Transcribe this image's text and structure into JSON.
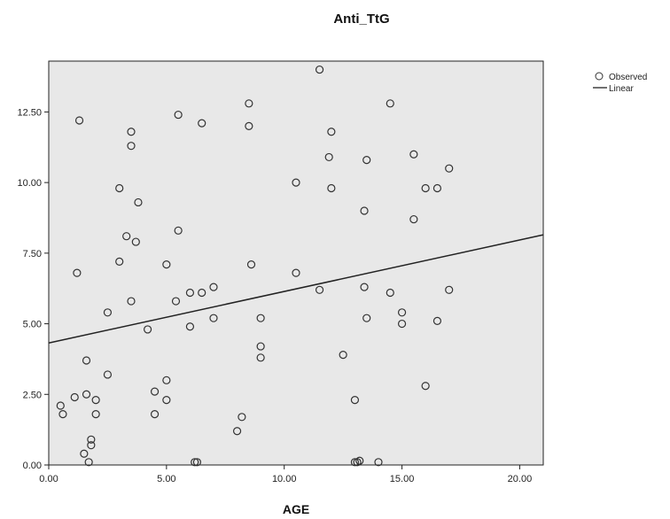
{
  "chart_data": {
    "type": "scatter",
    "title": "Anti_TtG",
    "xlabel": "AGE",
    "ylabel": "",
    "xlim": [
      0,
      21
    ],
    "ylim": [
      0,
      14.3
    ],
    "xticks": [
      0,
      5,
      10,
      15,
      20
    ],
    "xtick_labels": [
      "0.00",
      "5.00",
      "10.00",
      "15.00",
      "20.00"
    ],
    "yticks": [
      0,
      2.5,
      5,
      7.5,
      10,
      12.5
    ],
    "ytick_labels": [
      "0.00",
      "2.50",
      "5.00",
      "7.50",
      "10.00",
      "12.50"
    ],
    "grid": false,
    "legend_position": "top-right",
    "plot_background": "#e8e8e8",
    "marker_color": "#333333",
    "line_color": "#222222",
    "series": [
      {
        "name": "Observed",
        "marker": "open-circle",
        "points": [
          [
            0.5,
            2.1
          ],
          [
            0.6,
            1.8
          ],
          [
            1.1,
            2.4
          ],
          [
            1.2,
            6.8
          ],
          [
            1.3,
            12.2
          ],
          [
            1.5,
            0.4
          ],
          [
            1.6,
            2.5
          ],
          [
            1.6,
            3.7
          ],
          [
            1.7,
            0.1
          ],
          [
            1.8,
            0.7
          ],
          [
            1.8,
            0.9
          ],
          [
            2.0,
            1.8
          ],
          [
            2.0,
            2.3
          ],
          [
            2.5,
            3.2
          ],
          [
            2.5,
            5.4
          ],
          [
            3.0,
            7.2
          ],
          [
            3.0,
            9.8
          ],
          [
            3.3,
            8.1
          ],
          [
            3.5,
            11.8
          ],
          [
            3.5,
            11.3
          ],
          [
            3.5,
            5.8
          ],
          [
            3.7,
            7.9
          ],
          [
            3.8,
            9.3
          ],
          [
            4.2,
            4.8
          ],
          [
            4.5,
            2.6
          ],
          [
            4.5,
            1.8
          ],
          [
            5.0,
            3.0
          ],
          [
            5.0,
            2.3
          ],
          [
            5.0,
            7.1
          ],
          [
            5.4,
            5.8
          ],
          [
            5.5,
            8.3
          ],
          [
            5.5,
            12.4
          ],
          [
            6.0,
            6.1
          ],
          [
            6.0,
            4.9
          ],
          [
            6.2,
            0.1
          ],
          [
            6.3,
            0.1
          ],
          [
            6.5,
            6.1
          ],
          [
            6.5,
            12.1
          ],
          [
            7.0,
            6.3
          ],
          [
            7.0,
            5.2
          ],
          [
            8.0,
            1.2
          ],
          [
            8.2,
            1.7
          ],
          [
            8.5,
            12.8
          ],
          [
            8.5,
            12.0
          ],
          [
            8.6,
            7.1
          ],
          [
            9.0,
            5.2
          ],
          [
            9.0,
            4.2
          ],
          [
            9.0,
            3.8
          ],
          [
            10.5,
            10.0
          ],
          [
            10.5,
            6.8
          ],
          [
            11.5,
            14.0
          ],
          [
            11.5,
            6.2
          ],
          [
            11.9,
            10.9
          ],
          [
            12.0,
            11.8
          ],
          [
            12.0,
            9.8
          ],
          [
            12.5,
            3.9
          ],
          [
            13.0,
            2.3
          ],
          [
            13.0,
            0.1
          ],
          [
            13.1,
            0.1
          ],
          [
            13.2,
            0.15
          ],
          [
            13.4,
            9.0
          ],
          [
            13.4,
            6.3
          ],
          [
            13.5,
            10.8
          ],
          [
            13.5,
            5.2
          ],
          [
            14.0,
            0.1
          ],
          [
            14.5,
            12.8
          ],
          [
            14.5,
            6.1
          ],
          [
            15.0,
            5.4
          ],
          [
            15.0,
            5.0
          ],
          [
            15.5,
            11.0
          ],
          [
            15.5,
            8.7
          ],
          [
            16.0,
            9.8
          ],
          [
            16.0,
            2.8
          ],
          [
            16.5,
            9.8
          ],
          [
            16.5,
            5.1
          ],
          [
            17.0,
            10.5
          ],
          [
            17.0,
            6.2
          ]
        ]
      },
      {
        "name": "Linear",
        "marker": "line",
        "points": [
          [
            0,
            4.32
          ],
          [
            21,
            8.15
          ]
        ]
      }
    ]
  }
}
